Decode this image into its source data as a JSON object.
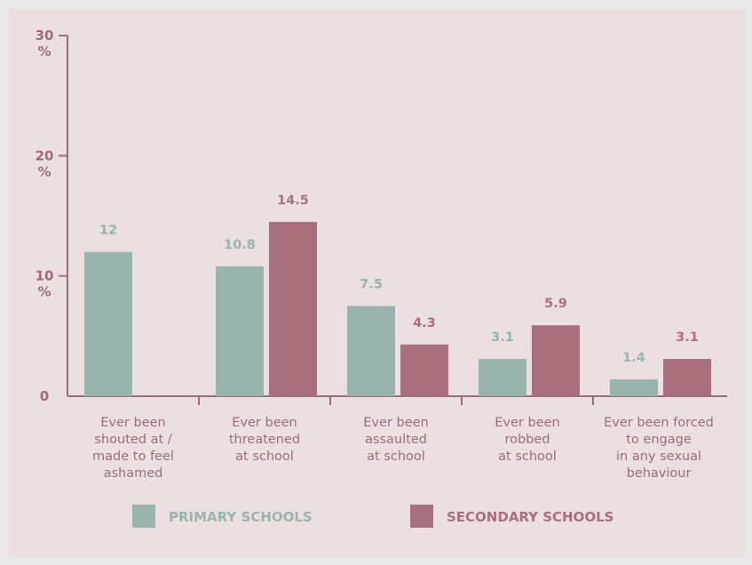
{
  "chart_data": {
    "type": "bar",
    "categories": [
      [
        "Ever been",
        "shouted at /",
        "made to feel",
        "ashamed"
      ],
      [
        "Ever been",
        "threatened",
        "at school"
      ],
      [
        "Ever been",
        "assaulted",
        "at school"
      ],
      [
        "Ever been",
        "robbed",
        "at school"
      ],
      [
        "Ever been forced",
        "to engage",
        "in any sexual",
        "behaviour"
      ]
    ],
    "series": [
      {
        "name": "PRIMARY SCHOOLS",
        "color": "#99b3ad",
        "values": [
          12,
          10.8,
          7.5,
          3.1,
          1.4
        ]
      },
      {
        "name": "SECONDARY SCHOOLS",
        "color": "#a8707c",
        "values": [
          null,
          14.5,
          4.3,
          5.9,
          3.1
        ]
      }
    ],
    "yticks": [
      {
        "value": 0,
        "label": [
          "0"
        ]
      },
      {
        "value": 10,
        "label": [
          "10",
          "%"
        ]
      },
      {
        "value": 20,
        "label": [
          "20",
          "%"
        ]
      },
      {
        "value": 30,
        "label": [
          "30",
          "%"
        ]
      }
    ],
    "ylim": [
      0,
      30
    ],
    "axis_color": "#9e6b79",
    "grid": false,
    "legend_position": "bottom"
  }
}
